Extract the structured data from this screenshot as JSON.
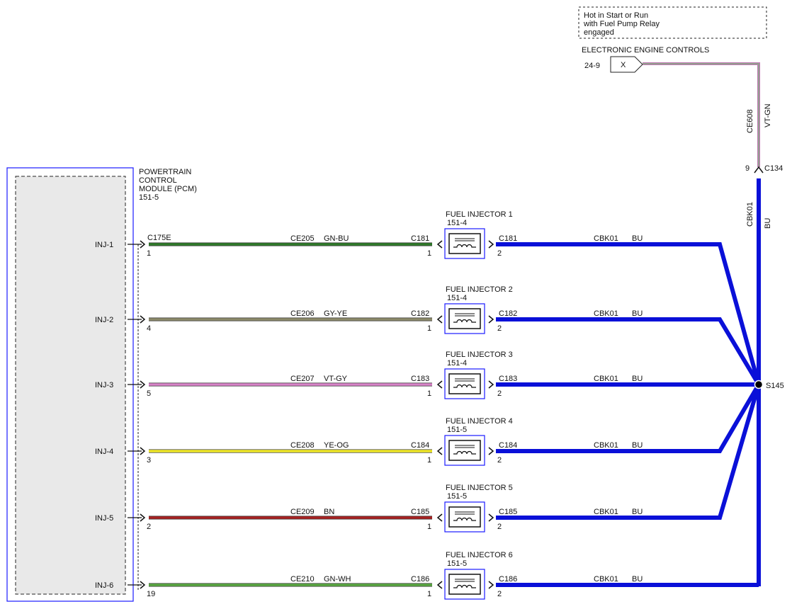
{
  "note_box": {
    "line1": "Hot in Start or Run",
    "line2": "with Fuel Pump Relay",
    "line3": "engaged"
  },
  "feed": {
    "system": "ELECTRONIC ENGINE CONTROLS",
    "page_ref": "24-9",
    "terminal": "X",
    "circuit": "CE608",
    "color": "VT-GN",
    "connector_pin": "9",
    "connector": "C134",
    "bus_circuit": "CBK01",
    "bus_color": "BU"
  },
  "pcm": {
    "line1": "POWERTRAIN",
    "line2": "CONTROL",
    "line3": "MODULE (PCM)",
    "line4": "151-5",
    "connector": "C175E"
  },
  "splice": {
    "label": "S145"
  },
  "colors": {
    "module_border": "#1a1aff",
    "bus": "#0a10d8",
    "GN-BU": "#2f7a2a",
    "GY-YE": "#8c8a6a",
    "VT-GY": "#d883c8",
    "YE-OG": "#f2ea2a",
    "BN": "#a82222",
    "GN-WH": "#5aa842",
    "VT-GN_a": "#c07ab4",
    "VT-GN_b": "#78b878"
  },
  "injectors": [
    {
      "pin_name": "INJ-1",
      "pcm_pin": "1",
      "circuit": "CE205",
      "color": "GN-BU",
      "conn": "C181",
      "title": "FUEL INJECTOR 1",
      "ref": "151-4",
      "inj_pin_in": "1",
      "inj_pin_out": "2",
      "out_circuit": "CBK01",
      "out_color": "BU"
    },
    {
      "pin_name": "INJ-2",
      "pcm_pin": "4",
      "circuit": "CE206",
      "color": "GY-YE",
      "conn": "C182",
      "title": "FUEL INJECTOR 2",
      "ref": "151-4",
      "inj_pin_in": "1",
      "inj_pin_out": "2",
      "out_circuit": "CBK01",
      "out_color": "BU"
    },
    {
      "pin_name": "INJ-3",
      "pcm_pin": "5",
      "circuit": "CE207",
      "color": "VT-GY",
      "conn": "C183",
      "title": "FUEL INJECTOR 3",
      "ref": "151-4",
      "inj_pin_in": "1",
      "inj_pin_out": "2",
      "out_circuit": "CBK01",
      "out_color": "BU"
    },
    {
      "pin_name": "INJ-4",
      "pcm_pin": "3",
      "circuit": "CE208",
      "color": "YE-OG",
      "conn": "C184",
      "title": "FUEL INJECTOR 4",
      "ref": "151-5",
      "inj_pin_in": "1",
      "inj_pin_out": "2",
      "out_circuit": "CBK01",
      "out_color": "BU"
    },
    {
      "pin_name": "INJ-5",
      "pcm_pin": "2",
      "circuit": "CE209",
      "color": "BN",
      "conn": "C185",
      "title": "FUEL INJECTOR 5",
      "ref": "151-5",
      "inj_pin_in": "1",
      "inj_pin_out": "2",
      "out_circuit": "CBK01",
      "out_color": "BU"
    },
    {
      "pin_name": "INJ-6",
      "pcm_pin": "19",
      "circuit": "CE210",
      "color": "GN-WH",
      "conn": "C186",
      "title": "FUEL INJECTOR 6",
      "ref": "151-5",
      "inj_pin_in": "1",
      "inj_pin_out": "2",
      "out_circuit": "CBK01",
      "out_color": "BU"
    }
  ]
}
